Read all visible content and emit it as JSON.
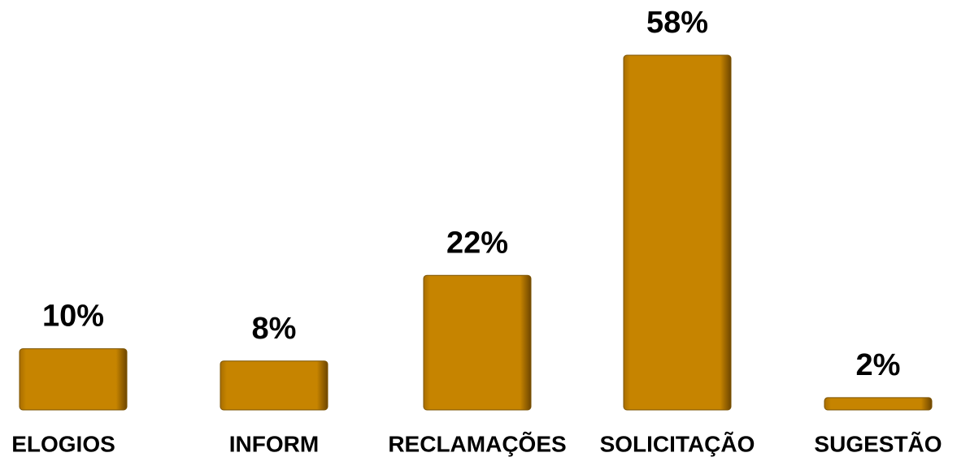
{
  "chart_data": {
    "type": "bar",
    "categories": [
      "ELOGIOS",
      "INFORM",
      "RECLAMAÇÕES",
      "SOLICITAÇÃO",
      "SUGESTÃO"
    ],
    "values": [
      10,
      8,
      22,
      58,
      2
    ],
    "value_labels": [
      "10%",
      "8%",
      "22%",
      "58%",
      "2%"
    ],
    "color": "#c68400"
  }
}
